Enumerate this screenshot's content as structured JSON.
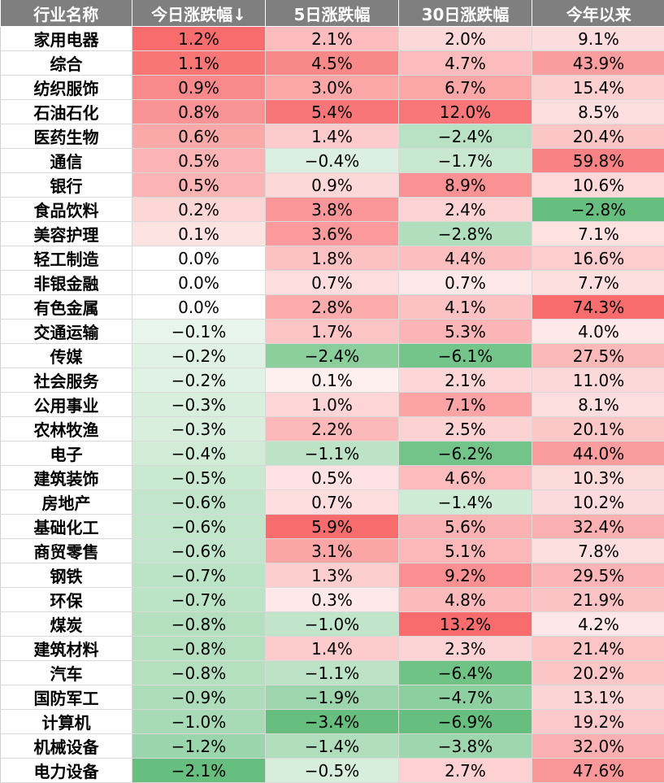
{
  "chart_data": {
    "type": "table",
    "headers": [
      "行业名称",
      "今日涨跌幅↓",
      "5日涨跌幅",
      "30日涨跌幅",
      "今年以来"
    ],
    "rows": [
      [
        "家用电器",
        "1.2%",
        "2.1%",
        "2.0%",
        "9.1%"
      ],
      [
        "综合",
        "1.1%",
        "4.5%",
        "4.7%",
        "43.9%"
      ],
      [
        "纺织服饰",
        "0.9%",
        "3.0%",
        "6.7%",
        "15.4%"
      ],
      [
        "石油石化",
        "0.8%",
        "5.4%",
        "12.0%",
        "8.5%"
      ],
      [
        "医药生物",
        "0.6%",
        "1.4%",
        "−2.4%",
        "20.4%"
      ],
      [
        "通信",
        "0.5%",
        "−0.4%",
        "−1.7%",
        "59.8%"
      ],
      [
        "银行",
        "0.5%",
        "0.9%",
        "8.9%",
        "10.6%"
      ],
      [
        "食品饮料",
        "0.2%",
        "3.8%",
        "2.4%",
        "−2.8%"
      ],
      [
        "美容护理",
        "0.1%",
        "3.6%",
        "−2.8%",
        "7.1%"
      ],
      [
        "轻工制造",
        "0.0%",
        "1.8%",
        "4.4%",
        "16.6%"
      ],
      [
        "非银金融",
        "0.0%",
        "0.7%",
        "0.7%",
        "7.7%"
      ],
      [
        "有色金属",
        "0.0%",
        "2.8%",
        "4.1%",
        "74.3%"
      ],
      [
        "交通运输",
        "−0.1%",
        "1.7%",
        "5.3%",
        "4.0%"
      ],
      [
        "传媒",
        "−0.2%",
        "−2.4%",
        "−6.1%",
        "27.5%"
      ],
      [
        "社会服务",
        "−0.2%",
        "0.1%",
        "2.1%",
        "11.0%"
      ],
      [
        "公用事业",
        "−0.3%",
        "1.0%",
        "7.1%",
        "8.1%"
      ],
      [
        "农林牧渔",
        "−0.3%",
        "2.2%",
        "2.5%",
        "20.1%"
      ],
      [
        "电子",
        "−0.4%",
        "−1.1%",
        "−6.2%",
        "44.0%"
      ],
      [
        "建筑装饰",
        "−0.5%",
        "0.5%",
        "4.6%",
        "10.3%"
      ],
      [
        "房地产",
        "−0.6%",
        "0.7%",
        "−1.4%",
        "10.2%"
      ],
      [
        "基础化工",
        "−0.6%",
        "5.9%",
        "5.6%",
        "32.4%"
      ],
      [
        "商贸零售",
        "−0.6%",
        "3.1%",
        "5.1%",
        "7.8%"
      ],
      [
        "钢铁",
        "−0.7%",
        "1.3%",
        "9.2%",
        "29.5%"
      ],
      [
        "环保",
        "−0.7%",
        "0.3%",
        "4.8%",
        "21.9%"
      ],
      [
        "煤炭",
        "−0.8%",
        "−1.0%",
        "13.2%",
        "4.2%"
      ],
      [
        "建筑材料",
        "−0.8%",
        "1.4%",
        "2.3%",
        "21.4%"
      ],
      [
        "汽车",
        "−0.8%",
        "−1.1%",
        "−6.4%",
        "20.2%"
      ],
      [
        "国防军工",
        "−0.9%",
        "−1.9%",
        "−4.7%",
        "13.1%"
      ],
      [
        "计算机",
        "−1.0%",
        "−3.4%",
        "−6.9%",
        "19.2%"
      ],
      [
        "机械设备",
        "−1.2%",
        "−1.4%",
        "−3.8%",
        "32.0%"
      ],
      [
        "电力设备",
        "−2.1%",
        "−0.5%",
        "2.7%",
        "47.6%"
      ]
    ],
    "colors": {
      "header_bg": "#7f7f7f",
      "header_text": "#ffffff",
      "positive": "#f8696b",
      "negative": "#63be7b",
      "neutral": "#ffffff"
    }
  }
}
